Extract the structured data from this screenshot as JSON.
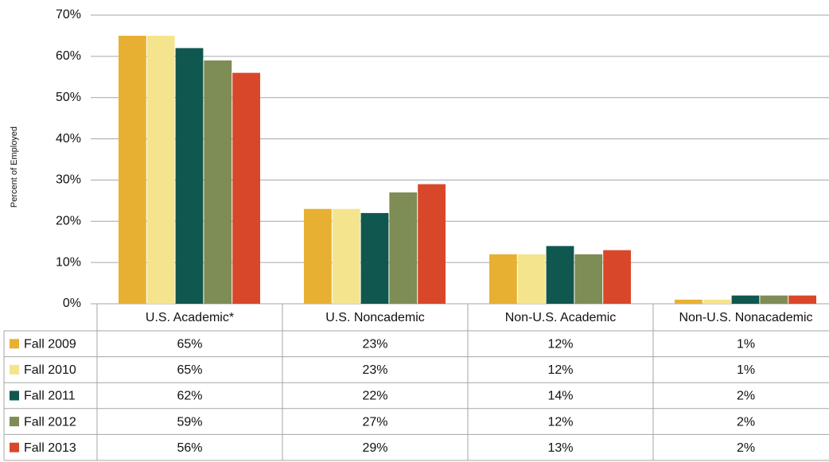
{
  "chart_data": {
    "type": "bar",
    "y_label": "Percent of Employed",
    "categories": [
      "U.S. Academic*",
      "U.S. Noncademic",
      "Non-U.S. Academic",
      "Non-U.S. Nonacademic"
    ],
    "series": [
      {
        "name": "Fall 2009",
        "color": "#e8b032",
        "values": [
          65,
          23,
          12,
          1
        ],
        "value_labels": [
          "65%",
          "23%",
          "12%",
          "1%"
        ]
      },
      {
        "name": "Fall 2010",
        "color": "#f5e48e",
        "values": [
          65,
          23,
          12,
          1
        ],
        "value_labels": [
          "65%",
          "23%",
          "12%",
          "1%"
        ]
      },
      {
        "name": "Fall 2011",
        "color": "#10574f",
        "values": [
          62,
          22,
          14,
          2
        ],
        "value_labels": [
          "62%",
          "22%",
          "14%",
          "2%"
        ]
      },
      {
        "name": "Fall 2012",
        "color": "#7e8c55",
        "values": [
          59,
          27,
          12,
          2
        ],
        "value_labels": [
          "59%",
          "27%",
          "12%",
          "2%"
        ]
      },
      {
        "name": "Fall 2013",
        "color": "#d9472a",
        "values": [
          56,
          29,
          13,
          2
        ],
        "value_labels": [
          "56%",
          "29%",
          "13%",
          "2%"
        ]
      }
    ],
    "ylim": [
      0,
      70
    ],
    "yticks": [
      {
        "value": 0,
        "label": "0%"
      },
      {
        "value": 10,
        "label": "10%"
      },
      {
        "value": 20,
        "label": "20%"
      },
      {
        "value": 30,
        "label": "30%"
      },
      {
        "value": 40,
        "label": "40%"
      },
      {
        "value": 50,
        "label": "50%"
      },
      {
        "value": 60,
        "label": "60%"
      },
      {
        "value": 70,
        "label": "70%"
      }
    ],
    "grid": true
  }
}
